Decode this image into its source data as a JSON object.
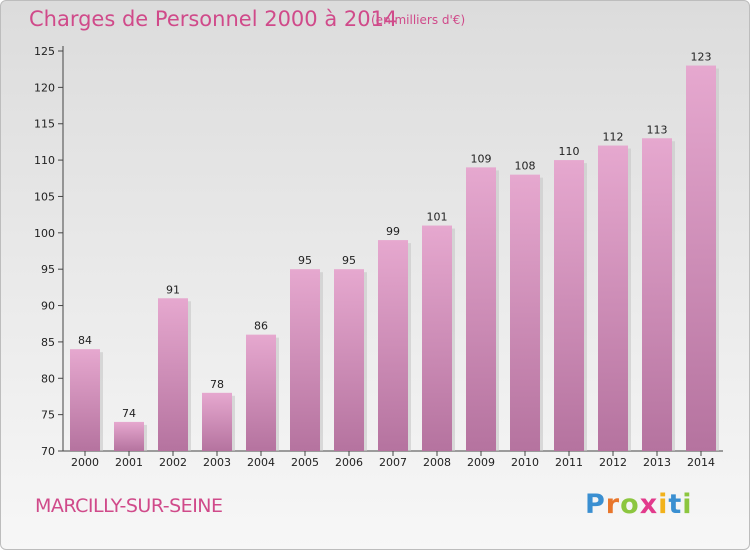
{
  "header": {
    "title": "Charges de Personnel 2000 à 2014",
    "subtitle": "(en milliers d'€)"
  },
  "footer": {
    "commune": "MARCILLY-SUR-SEINE",
    "brand": "Proxiti"
  },
  "colors": {
    "bar_top": "#e6a8cf",
    "bar_bottom": "#b5739f",
    "title": "#d04a8a",
    "brand_letters": [
      "#3a8fd1",
      "#e8762c",
      "#8cc63f",
      "#e23a8c",
      "#f2b21b",
      "#3a8fd1",
      "#8cc63f"
    ]
  },
  "chart_data": {
    "type": "bar",
    "title": "Charges de Personnel 2000 à 2014",
    "subtitle": "(en milliers d'€)",
    "categories": [
      "2000",
      "2001",
      "2002",
      "2003",
      "2004",
      "2005",
      "2006",
      "2007",
      "2008",
      "2009",
      "2010",
      "2011",
      "2012",
      "2013",
      "2014"
    ],
    "values": [
      84,
      74,
      91,
      78,
      86,
      95,
      95,
      99,
      101,
      109,
      108,
      110,
      112,
      113,
      123
    ],
    "ylim": [
      70,
      125
    ],
    "yticks": [
      70,
      75,
      80,
      85,
      90,
      95,
      100,
      105,
      110,
      115,
      120,
      125
    ],
    "grid": false,
    "legend": "none"
  }
}
